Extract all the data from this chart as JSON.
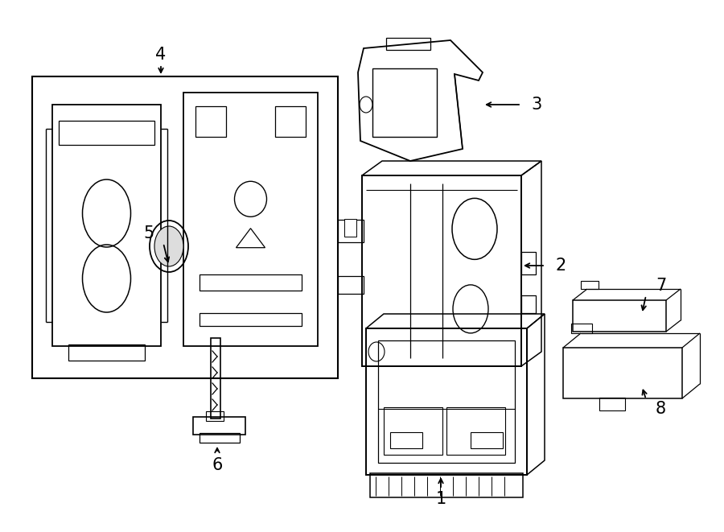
{
  "bg_color": "#ffffff",
  "line_color": "#000000",
  "fig_width": 9.0,
  "fig_height": 6.61
}
